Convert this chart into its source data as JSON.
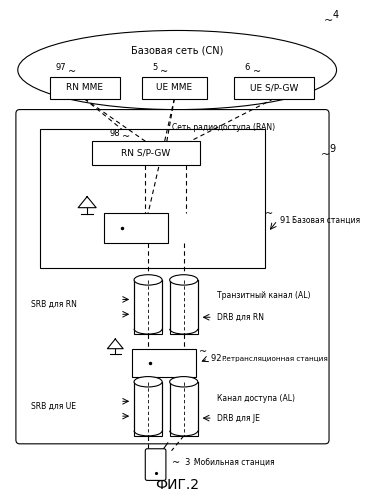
{
  "title": "ФИГ.2",
  "bg_color": "#ffffff",
  "cn_label": "Базовая сеть (CN)",
  "ran_text": "Сеть радиодоступа (RAN)",
  "bs_text": "Базовая станция",
  "relay_text": "Ретрансляционная станция",
  "backhaul_text": "Транзитный канал (AL)",
  "access_text": "Канал доступа (AL)",
  "srb_rn": "SRB для RN",
  "drb_rn": "DRB для RN",
  "srb_ue": "SRB для UE",
  "drb_je": "DRB для JE",
  "ms_text": "Мобильная станция"
}
